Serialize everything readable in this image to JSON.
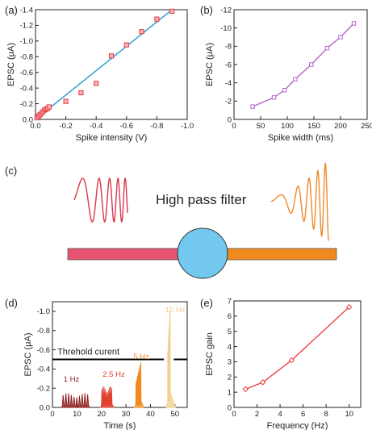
{
  "panels": {
    "a": "(a)",
    "b": "(b)",
    "c": "(c)",
    "d": "(d)",
    "e": "(e)"
  },
  "filter_label": "High pass filter",
  "colors": {
    "red_marker": "#e8383d",
    "fit_line": "#3aa3d6",
    "purple": "#b265cc",
    "pink_bar": "#e8536f",
    "orange_bar": "#f08a1e",
    "circle": "#72c8ef",
    "red_wave": "#d9374b",
    "orange_wave": "#ef8a2a",
    "pulse_1": "#8e1b1b",
    "pulse_2_5": "#e0402e",
    "pulse_5": "#f08a1e",
    "pulse_10": "#f3cf8e"
  },
  "chart_data": [
    {
      "id": "a",
      "type": "scatter",
      "xlabel": "Spike intensity (V)",
      "ylabel": "EPSC (μA)",
      "xlim": [
        0,
        -1.0
      ],
      "ylim": [
        0,
        -1.4
      ],
      "xticks": [
        0.0,
        -0.2,
        -0.4,
        -0.6,
        -0.8,
        -1.0
      ],
      "xtick_labels": [
        "0.0",
        "-0.2",
        "-0.4",
        "-0.6",
        "-0.8",
        "-1.0"
      ],
      "yticks": [
        0.0,
        -0.2,
        -0.4,
        -0.6,
        -0.8,
        -1.0,
        -1.2,
        -1.4
      ],
      "ytick_labels": [
        "0.0",
        "-0.2",
        "-0.4",
        "-0.6",
        "-0.8",
        "-1.0",
        "-1.2",
        "-1.4"
      ],
      "x": [
        -0.01,
        -0.02,
        -0.03,
        -0.04,
        -0.05,
        -0.06,
        -0.07,
        -0.08,
        -0.09,
        -0.2,
        -0.3,
        -0.4,
        -0.5,
        -0.6,
        -0.7,
        -0.8,
        -0.9
      ],
      "y": [
        -0.02,
        -0.04,
        -0.06,
        -0.08,
        -0.1,
        -0.12,
        -0.13,
        -0.14,
        -0.16,
        -0.23,
        -0.34,
        -0.46,
        -0.81,
        -0.95,
        -1.12,
        -1.28,
        -1.38
      ],
      "fit": {
        "x": [
          0.0,
          -0.9
        ],
        "y": [
          0.0,
          -1.4
        ]
      }
    },
    {
      "id": "b",
      "type": "line",
      "xlabel": "Spike width (ms)",
      "ylabel": "EPSC (μA)",
      "xlim": [
        0,
        250
      ],
      "ylim": [
        0,
        -12
      ],
      "xticks": [
        0,
        50,
        100,
        150,
        200,
        250
      ],
      "xtick_labels": [
        "0",
        "50",
        "100",
        "150",
        "200",
        "250"
      ],
      "yticks": [
        0,
        -2,
        -4,
        -6,
        -8,
        -10,
        -12
      ],
      "ytick_labels": [
        "0",
        "-2",
        "-4",
        "-6",
        "-8",
        "-10",
        "-12"
      ],
      "x": [
        35,
        75,
        95,
        115,
        145,
        175,
        200,
        225
      ],
      "y": [
        -1.4,
        -2.4,
        -3.2,
        -4.4,
        -6.0,
        -7.8,
        -9.0,
        -10.5
      ]
    },
    {
      "id": "d",
      "type": "line",
      "xlabel": "Time (s)",
      "ylabel": "EPSC (μA)",
      "xlim": [
        0,
        55
      ],
      "ylim": [
        0,
        -1.1
      ],
      "xticks": [
        0,
        10,
        20,
        30,
        40,
        50
      ],
      "xtick_labels": [
        "0",
        "10",
        "20",
        "30",
        "40",
        "50"
      ],
      "yticks": [
        0.0,
        -0.2,
        -0.4,
        -0.6,
        -0.8,
        -1.0
      ],
      "ytick_labels": [
        "0.0",
        "-0.2",
        "-0.4",
        "-0.6",
        "-0.8",
        "-1.0"
      ],
      "threshold": {
        "label": "Threhold curent",
        "value": -0.5
      },
      "series": [
        {
          "name": "1 Hz",
          "t_start": 4,
          "t_end": 14,
          "count": 10,
          "peak": -0.15
        },
        {
          "name": "2.5 Hz",
          "t_start": 20,
          "t_end": 24,
          "count": 10,
          "peak": -0.22
        },
        {
          "name": "5 Hz",
          "t_start": 34,
          "t_end": 36,
          "count": 10,
          "peak": -0.47
        },
        {
          "name": "10 Hz",
          "t_start": 47,
          "t_end": 48,
          "count": 10,
          "peak": -1.05
        }
      ]
    },
    {
      "id": "e",
      "type": "line",
      "xlabel": "Frequency (Hz)",
      "ylabel": "EPSC gain",
      "xlim": [
        0,
        11
      ],
      "ylim": [
        0,
        7
      ],
      "xticks": [
        0,
        2,
        4,
        6,
        8,
        10
      ],
      "xtick_labels": [
        "0",
        "2",
        "4",
        "6",
        "8",
        "10"
      ],
      "yticks": [
        0,
        1,
        2,
        3,
        4,
        5,
        6,
        7
      ],
      "ytick_labels": [
        "0",
        "1",
        "2",
        "3",
        "4",
        "5",
        "6",
        "7"
      ],
      "x": [
        1,
        2.5,
        5,
        10
      ],
      "y": [
        1.2,
        1.65,
        3.1,
        6.6
      ]
    }
  ]
}
